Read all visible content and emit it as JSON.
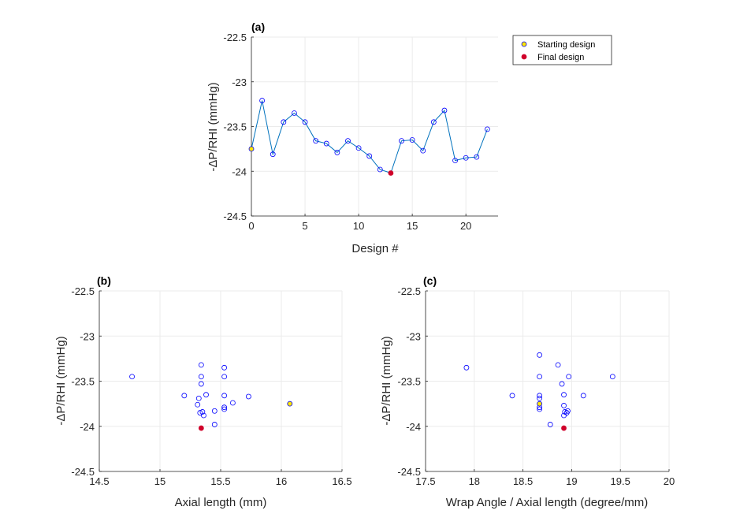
{
  "colors": {
    "line": "#0072BD",
    "marker": "#0000FF",
    "start": "#FFE600",
    "final": "#D0002A",
    "grid": "#EBEBEB",
    "axis": "#262626"
  },
  "legend": {
    "placement": "top-right-outside",
    "entries": [
      {
        "label": "Starting design",
        "color": "#FFE600"
      },
      {
        "label": "Final design",
        "color": "#D0002A"
      }
    ]
  },
  "chart_data": [
    {
      "id": "a",
      "panel_label": "(a)",
      "type": "line",
      "xlabel": "Design #",
      "ylabel": "-ΔP/RHI (mmHg)",
      "xlim": [
        0,
        23
      ],
      "ylim": [
        -24.5,
        -22.5
      ],
      "xticks": [
        0,
        5,
        10,
        15,
        20
      ],
      "yticks": [
        -22.5,
        -23,
        -23.5,
        -24,
        -24.5
      ],
      "ytick_labels": [
        "-22.5",
        "-23",
        "-23.5",
        "-24",
        "-24.5"
      ],
      "grid": true,
      "x": [
        0,
        1,
        2,
        3,
        4,
        5,
        6,
        7,
        8,
        9,
        10,
        11,
        12,
        13,
        14,
        15,
        16,
        17,
        18,
        19,
        20,
        21,
        22
      ],
      "y": [
        -23.75,
        -23.21,
        -23.81,
        -23.45,
        -23.35,
        -23.45,
        -23.66,
        -23.69,
        -23.79,
        -23.66,
        -23.74,
        -23.83,
        -23.98,
        -24.02,
        -23.66,
        -23.65,
        -23.77,
        -23.45,
        -23.32,
        -23.88,
        -23.85,
        -23.84,
        -23.53
      ],
      "start_index": 0,
      "final_index": 13
    },
    {
      "id": "b",
      "panel_label": "(b)",
      "type": "scatter",
      "xlabel": "Axial length (mm)",
      "ylabel": "-ΔP/RHI (mmHg)",
      "xlim": [
        14.5,
        16.5
      ],
      "ylim": [
        -24.5,
        -22.5
      ],
      "xticks": [
        14.5,
        15,
        15.5,
        16,
        16.5
      ],
      "xtick_labels": [
        "14.5",
        "15",
        "15.5",
        "16",
        "16.5"
      ],
      "yticks": [
        -22.5,
        -23,
        -23.5,
        -24,
        -24.5
      ],
      "ytick_labels": [
        "-22.5",
        "-23",
        "-23.5",
        "-24",
        "-24.5"
      ],
      "grid": true,
      "points": [
        {
          "x": 14.77,
          "y": -23.45
        },
        {
          "x": 15.2,
          "y": -23.66
        },
        {
          "x": 15.31,
          "y": -23.76
        },
        {
          "x": 15.32,
          "y": -23.69
        },
        {
          "x": 15.33,
          "y": -23.85
        },
        {
          "x": 15.34,
          "y": -23.32
        },
        {
          "x": 15.34,
          "y": -23.45
        },
        {
          "x": 15.34,
          "y": -23.53
        },
        {
          "x": 15.35,
          "y": -23.84
        },
        {
          "x": 15.36,
          "y": -23.88
        },
        {
          "x": 15.38,
          "y": -23.65
        },
        {
          "x": 15.45,
          "y": -23.83
        },
        {
          "x": 15.45,
          "y": -23.98
        },
        {
          "x": 15.53,
          "y": -23.35
        },
        {
          "x": 15.53,
          "y": -23.45
        },
        {
          "x": 15.53,
          "y": -23.66
        },
        {
          "x": 15.53,
          "y": -23.79
        },
        {
          "x": 15.53,
          "y": -23.81
        },
        {
          "x": 15.6,
          "y": -23.74
        },
        {
          "x": 15.73,
          "y": -23.67
        }
      ],
      "start_point": {
        "x": 16.07,
        "y": -23.75
      },
      "final_point": {
        "x": 15.34,
        "y": -24.02
      }
    },
    {
      "id": "c",
      "panel_label": "(c)",
      "type": "scatter",
      "xlabel": "Wrap Angle / Axial length (degree/mm)",
      "ylabel": "-ΔP/RHI (mmHg)",
      "xlim": [
        17.5,
        20
      ],
      "ylim": [
        -24.5,
        -22.5
      ],
      "xticks": [
        17.5,
        18,
        18.5,
        19,
        19.5,
        20
      ],
      "xtick_labels": [
        "17.5",
        "18",
        "18.5",
        "19",
        "19.5",
        "20"
      ],
      "yticks": [
        -22.5,
        -23,
        -23.5,
        -24,
        -24.5
      ],
      "ytick_labels": [
        "-22.5",
        "-23",
        "-23.5",
        "-24",
        "-24.5"
      ],
      "grid": true,
      "points": [
        {
          "x": 17.92,
          "y": -23.35
        },
        {
          "x": 18.39,
          "y": -23.66
        },
        {
          "x": 18.67,
          "y": -23.21
        },
        {
          "x": 18.67,
          "y": -23.45
        },
        {
          "x": 18.67,
          "y": -23.66
        },
        {
          "x": 18.67,
          "y": -23.69
        },
        {
          "x": 18.67,
          "y": -23.79
        },
        {
          "x": 18.67,
          "y": -23.81
        },
        {
          "x": 18.78,
          "y": -23.98
        },
        {
          "x": 18.86,
          "y": -23.32
        },
        {
          "x": 18.9,
          "y": -23.53
        },
        {
          "x": 18.92,
          "y": -23.65
        },
        {
          "x": 18.92,
          "y": -23.77
        },
        {
          "x": 18.92,
          "y": -23.88
        },
        {
          "x": 18.93,
          "y": -23.84
        },
        {
          "x": 18.95,
          "y": -23.85
        },
        {
          "x": 18.96,
          "y": -23.83
        },
        {
          "x": 18.97,
          "y": -23.45
        },
        {
          "x": 19.12,
          "y": -23.66
        },
        {
          "x": 19.42,
          "y": -23.45
        }
      ],
      "start_point": {
        "x": 18.67,
        "y": -23.75
      },
      "final_point": {
        "x": 18.92,
        "y": -24.02
      }
    }
  ]
}
